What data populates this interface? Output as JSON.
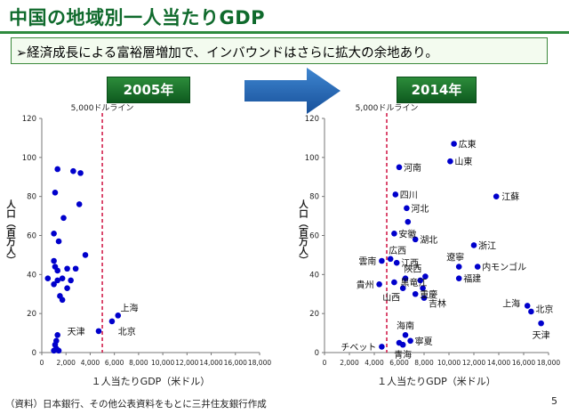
{
  "page": {
    "title": "中国の地域別一人当たりGDP",
    "subtitle": "経済成長による富裕層増加で、インバウンドはさらに拡大の余地あり。",
    "subtitle_marker": "➢",
    "footer": "（資料）日本銀行、その他公表資料をもとに三井住友銀行作成",
    "page_number": "5",
    "colors": {
      "accent_green": "#0f6a2c",
      "arrow_blue": "#1f5fa8",
      "point": "#0000cc",
      "threshold_line": "#cc0033"
    }
  },
  "chart_data": [
    {
      "type": "scatter",
      "title": "2005年",
      "xlabel": "１人当たりGDP（米ドル）",
      "ylabel": "人口（百万人）",
      "xlim": [
        0,
        18000
      ],
      "ylim": [
        0,
        120
      ],
      "xticks": [
        "0",
        "2,000",
        "4,000",
        "6,000",
        "8,000",
        "10,000",
        "12,000",
        "14,000",
        "16,000",
        "18,000"
      ],
      "yticks": [
        "0",
        "20",
        "40",
        "60",
        "80",
        "100",
        "120"
      ],
      "threshold": {
        "x": 5000,
        "label": "5,000ドルライン"
      },
      "points": [
        {
          "x": 1300,
          "y": 94
        },
        {
          "x": 2600,
          "y": 93
        },
        {
          "x": 3200,
          "y": 92
        },
        {
          "x": 1100,
          "y": 82
        },
        {
          "x": 3100,
          "y": 76
        },
        {
          "x": 1800,
          "y": 69
        },
        {
          "x": 1000,
          "y": 61
        },
        {
          "x": 1400,
          "y": 57
        },
        {
          "x": 3600,
          "y": 50
        },
        {
          "x": 1000,
          "y": 47
        },
        {
          "x": 2100,
          "y": 43
        },
        {
          "x": 2800,
          "y": 43
        },
        {
          "x": 1100,
          "y": 44
        },
        {
          "x": 1300,
          "y": 42
        },
        {
          "x": 500,
          "y": 38
        },
        {
          "x": 1300,
          "y": 37
        },
        {
          "x": 1700,
          "y": 38
        },
        {
          "x": 2400,
          "y": 37
        },
        {
          "x": 1000,
          "y": 35
        },
        {
          "x": 2100,
          "y": 33
        },
        {
          "x": 1500,
          "y": 29
        },
        {
          "x": 1700,
          "y": 27
        },
        {
          "x": 6300,
          "y": 19
        },
        {
          "x": 5800,
          "y": 16
        },
        {
          "x": 4700,
          "y": 11
        },
        {
          "x": 1300,
          "y": 9
        },
        {
          "x": 1200,
          "y": 6
        },
        {
          "x": 1100,
          "y": 4
        },
        {
          "x": 1200,
          "y": 2
        },
        {
          "x": 1000,
          "y": 1
        },
        {
          "x": 1400,
          "y": 1
        }
      ],
      "labels": [
        {
          "text": "上海",
          "x": 6500,
          "y": 23
        },
        {
          "text": "天津",
          "x": 2100,
          "y": 11
        },
        {
          "text": "北京",
          "x": 6300,
          "y": 11
        }
      ]
    },
    {
      "type": "scatter",
      "title": "2014年",
      "xlabel": "１人当たりGDP（米ドル）",
      "ylabel": "人口（百万人）",
      "xlim": [
        0,
        18000
      ],
      "ylim": [
        0,
        120
      ],
      "xticks": [
        "0",
        "2,000",
        "4,000",
        "6,000",
        "8,000",
        "10,000",
        "12,000",
        "14,000",
        "16,000",
        "18,000"
      ],
      "yticks": [
        "0",
        "20",
        "40",
        "60",
        "80",
        "100",
        "120"
      ],
      "threshold": {
        "x": 5000,
        "label": "5,000ドルライン"
      },
      "points": [
        {
          "x": 10400,
          "y": 107,
          "label": "広東"
        },
        {
          "x": 10100,
          "y": 98,
          "label": "山東"
        },
        {
          "x": 6000,
          "y": 95,
          "label": "河南"
        },
        {
          "x": 13800,
          "y": 80,
          "label": "江蘇"
        },
        {
          "x": 5700,
          "y": 81,
          "label": "四川"
        },
        {
          "x": 6600,
          "y": 74,
          "label": "河北"
        },
        {
          "x": 6700,
          "y": 67
        },
        {
          "x": 5600,
          "y": 61,
          "label": "安徽"
        },
        {
          "x": 7300,
          "y": 58,
          "label": "湖北"
        },
        {
          "x": 12000,
          "y": 55,
          "label": "浙江"
        },
        {
          "x": 5300,
          "y": 48,
          "label": "広西"
        },
        {
          "x": 4600,
          "y": 47,
          "label": "雲南"
        },
        {
          "x": 5800,
          "y": 46,
          "label": "江西"
        },
        {
          "x": 10800,
          "y": 44,
          "label": "遼寧"
        },
        {
          "x": 12300,
          "y": 44,
          "label": "内モンゴル"
        },
        {
          "x": 8100,
          "y": 39,
          "label": "陝西"
        },
        {
          "x": 6500,
          "y": 38
        },
        {
          "x": 10800,
          "y": 38,
          "label": "福建"
        },
        {
          "x": 5600,
          "y": 36,
          "label": "黒竜江"
        },
        {
          "x": 7700,
          "y": 37
        },
        {
          "x": 4400,
          "y": 35,
          "label": "貴州"
        },
        {
          "x": 7900,
          "y": 33
        },
        {
          "x": 6300,
          "y": 33,
          "label": "山西"
        },
        {
          "x": 7300,
          "y": 30,
          "label": "重慶"
        },
        {
          "x": 8000,
          "y": 28,
          "label": "吉林"
        },
        {
          "x": 16300,
          "y": 24,
          "label": "上海"
        },
        {
          "x": 16600,
          "y": 21,
          "label": "北京"
        },
        {
          "x": 17400,
          "y": 15,
          "label": "天津"
        },
        {
          "x": 6500,
          "y": 9,
          "label": "海南"
        },
        {
          "x": 6900,
          "y": 6,
          "label": "寧夏"
        },
        {
          "x": 6000,
          "y": 5
        },
        {
          "x": 6300,
          "y": 4,
          "label": "青海"
        },
        {
          "x": 4600,
          "y": 3,
          "label": "チベット"
        }
      ]
    }
  ]
}
